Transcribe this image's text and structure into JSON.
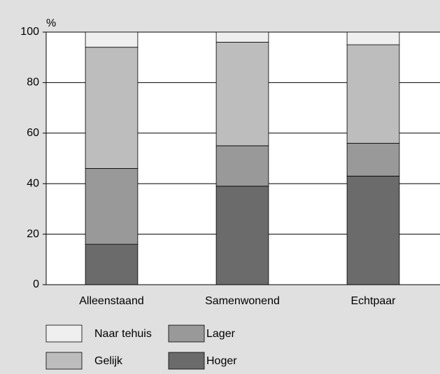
{
  "chart_data": {
    "type": "stacked_bar",
    "y_label": "%",
    "categories": [
      "Alleenstaand",
      "Samenwonend",
      "Echtpaar"
    ],
    "series": [
      {
        "name": "Hoger",
        "color": "#6b6b6b",
        "values": [
          16,
          39,
          43
        ]
      },
      {
        "name": "Lager",
        "color": "#999999",
        "values": [
          30,
          16,
          13
        ]
      },
      {
        "name": "Gelijk",
        "color": "#bdbdbd",
        "values": [
          48,
          41,
          39
        ]
      },
      {
        "name": "Naar tehuis",
        "color": "#efefef",
        "values": [
          6,
          4,
          5
        ]
      }
    ],
    "ylim": [
      0,
      100
    ],
    "yticks": [
      0,
      20,
      40,
      60,
      80,
      100
    ],
    "grid": true
  }
}
